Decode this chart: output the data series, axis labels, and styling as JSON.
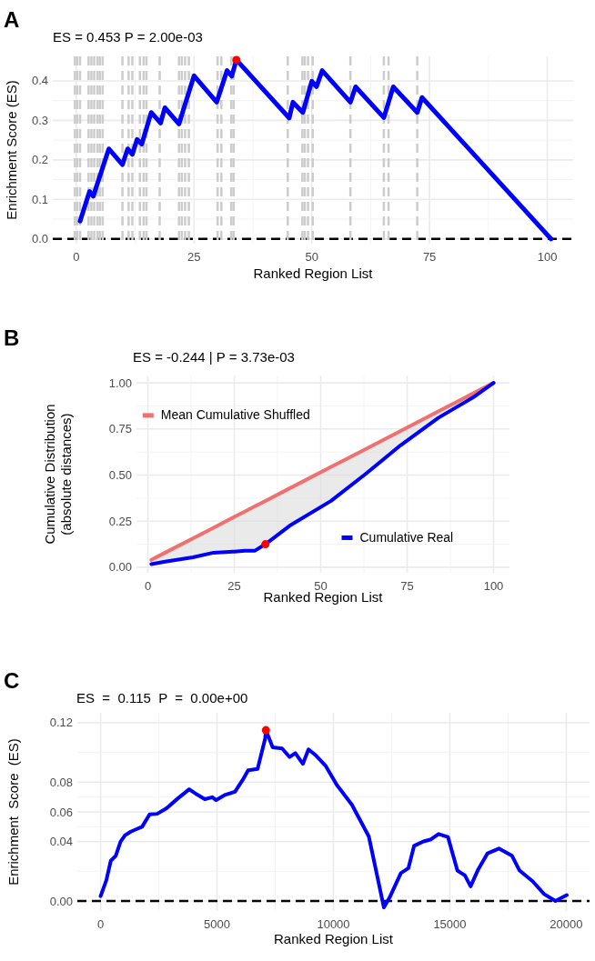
{
  "chart_data": [
    {
      "type": "line",
      "title": "ES = 0.453 P = 2.00e-03",
      "xlabel": "Ranked Region List",
      "ylabel": "Enrichment Score (ES)",
      "annotations": [
        "A"
      ],
      "xlim": [
        -5,
        105.5
      ],
      "ylim": [
        -0.012,
        0.462
      ],
      "xticks": [
        0,
        25,
        50,
        75,
        100
      ],
      "yticks": [
        {
          "value": 0,
          "label": "0.0"
        },
        0.1,
        0.2,
        0.3,
        0.4
      ],
      "grid": true,
      "legend": false,
      "series": [
        {
          "color": "#0000ff",
          "x": [
            0.8,
            2.8,
            3.6,
            6.9,
            9.8,
            10.9,
            11.9,
            12.9,
            13.9,
            15.9,
            17.9,
            18.8,
            21.8,
            25,
            29.8,
            32,
            33,
            34,
            45.2,
            46,
            48.1,
            50,
            51,
            52.2,
            58.2,
            59.3,
            65.3,
            67.3,
            72.4,
            73.4,
            100.8
          ],
          "values": [
            0.045,
            0.12,
            0.108,
            0.228,
            0.188,
            0.228,
            0.214,
            0.252,
            0.24,
            0.32,
            0.293,
            0.332,
            0.291,
            0.413,
            0.346,
            0.426,
            0.412,
            0.453,
            0.306,
            0.346,
            0.32,
            0.399,
            0.385,
            0.426,
            0.346,
            0.385,
            0.307,
            0.385,
            0.32,
            0.358,
            0
          ]
        },
        {
          "type": "scatter",
          "marker": "circle",
          "color": "#ff0000",
          "x": [
            34
          ],
          "values": [
            0.453
          ]
        }
      ],
      "ref_lines": [
        {
          "axis": "y",
          "value": 0,
          "color": "#000000",
          "line_style": "dashed"
        },
        {
          "axis": "x",
          "value": -0.3,
          "color": "#cccccc",
          "line_style": "dashed"
        },
        {
          "axis": "x",
          "value": 0.2,
          "color": "#cccccc",
          "line_style": "dashed"
        },
        {
          "axis": "x",
          "value": 0.8,
          "color": "#cccccc",
          "line_style": "dashed"
        },
        {
          "axis": "x",
          "value": 2.6,
          "color": "#cccccc",
          "line_style": "dashed"
        },
        {
          "axis": "x",
          "value": 3.2,
          "color": "#cccccc",
          "line_style": "dashed"
        },
        {
          "axis": "x",
          "value": 3.8,
          "color": "#cccccc",
          "line_style": "dashed"
        },
        {
          "axis": "x",
          "value": 4.5,
          "color": "#cccccc",
          "line_style": "dashed"
        },
        {
          "axis": "x",
          "value": 5,
          "color": "#cccccc",
          "line_style": "dashed"
        },
        {
          "axis": "x",
          "value": 5.6,
          "color": "#cccccc",
          "line_style": "dashed"
        },
        {
          "axis": "x",
          "value": 9.8,
          "color": "#cccccc",
          "line_style": "dashed"
        },
        {
          "axis": "x",
          "value": 11.1,
          "color": "#cccccc",
          "line_style": "dashed"
        },
        {
          "axis": "x",
          "value": 11.9,
          "color": "#cccccc",
          "line_style": "dashed"
        },
        {
          "axis": "x",
          "value": 13.5,
          "color": "#cccccc",
          "line_style": "dashed"
        },
        {
          "axis": "x",
          "value": 14.3,
          "color": "#cccccc",
          "line_style": "dashed"
        },
        {
          "axis": "x",
          "value": 14.9,
          "color": "#cccccc",
          "line_style": "dashed"
        },
        {
          "axis": "x",
          "value": 17.7,
          "color": "#cccccc",
          "line_style": "dashed"
        },
        {
          "axis": "x",
          "value": 21.8,
          "color": "#cccccc",
          "line_style": "dashed"
        },
        {
          "axis": "x",
          "value": 22.4,
          "color": "#cccccc",
          "line_style": "dashed"
        },
        {
          "axis": "x",
          "value": 23.1,
          "color": "#cccccc",
          "line_style": "dashed"
        },
        {
          "axis": "x",
          "value": 23.9,
          "color": "#cccccc",
          "line_style": "dashed"
        },
        {
          "axis": "x",
          "value": 30,
          "color": "#cccccc",
          "line_style": "dashed"
        },
        {
          "axis": "x",
          "value": 30.8,
          "color": "#cccccc",
          "line_style": "dashed"
        },
        {
          "axis": "x",
          "value": 32.9,
          "color": "#cccccc",
          "line_style": "dashed"
        },
        {
          "axis": "x",
          "value": 33.4,
          "color": "#cccccc",
          "line_style": "dashed"
        },
        {
          "axis": "x",
          "value": 44.9,
          "color": "#cccccc",
          "line_style": "dashed"
        },
        {
          "axis": "x",
          "value": 48,
          "color": "#cccccc",
          "line_style": "dashed"
        },
        {
          "axis": "x",
          "value": 48.5,
          "color": "#cccccc",
          "line_style": "dashed"
        },
        {
          "axis": "x",
          "value": 49.2,
          "color": "#cccccc",
          "line_style": "dashed"
        },
        {
          "axis": "x",
          "value": 50.2,
          "color": "#cccccc",
          "line_style": "dashed"
        },
        {
          "axis": "x",
          "value": 58.2,
          "color": "#cccccc",
          "line_style": "dashed"
        },
        {
          "axis": "x",
          "value": 65.3,
          "color": "#cccccc",
          "line_style": "dashed"
        },
        {
          "axis": "x",
          "value": 66.3,
          "color": "#cccccc",
          "line_style": "dashed"
        },
        {
          "axis": "x",
          "value": 72.4,
          "color": "#cccccc",
          "line_style": "dashed"
        }
      ]
    },
    {
      "type": "line",
      "title": "ES = -0.244 | P = 3.73e-03",
      "xlabel": "Ranked Region List",
      "ylabel": "Cumulative Distribution\n(absolute distances)",
      "annotations": [
        "B"
      ],
      "xlim": [
        -3.3,
        104.6
      ],
      "ylim": [
        -0.03,
        1.04
      ],
      "xticks": [
        0,
        25,
        50,
        75,
        100
      ],
      "yticks": [
        {
          "value": 0,
          "label": "0.00"
        },
        0.25,
        {
          "value": 0.5,
          "label": "0.50"
        },
        0.75,
        {
          "value": 1,
          "label": "1.00"
        }
      ],
      "grid": true,
      "legend": "bottom left",
      "series": [
        {
          "name": "Mean Cumulative Shuffled",
          "color": "#f07070",
          "x": [
            1,
            5,
            13,
            19,
            25,
            28,
            31,
            34,
            41,
            53,
            63,
            73,
            84,
            94,
            100
          ],
          "values": [
            0.04,
            0.079,
            0.156,
            0.214,
            0.273,
            0.302,
            0.331,
            0.36,
            0.428,
            0.544,
            0.641,
            0.738,
            0.845,
            0.942,
            1.0
          ],
          "lower": [
            0.017,
            0.03,
            0.054,
            0.079,
            0.085,
            0.09,
            0.09,
            0.125,
            0.225,
            0.36,
            0.506,
            0.66,
            0.81,
            0.92,
            1.0
          ],
          "upper": [
            0.04,
            0.079,
            0.156,
            0.214,
            0.273,
            0.302,
            0.331,
            0.36,
            0.428,
            0.544,
            0.641,
            0.738,
            0.845,
            0.942,
            1.0
          ]
        },
        {
          "name": "Cumulative Real",
          "color": "#0000ff",
          "x": [
            1,
            5,
            13,
            19,
            25,
            28,
            31,
            34,
            41,
            53,
            63,
            73,
            84,
            94,
            100
          ],
          "values": [
            0.017,
            0.03,
            0.054,
            0.079,
            0.085,
            0.09,
            0.09,
            0.125,
            0.225,
            0.36,
            0.506,
            0.66,
            0.81,
            0.92,
            1.0
          ]
        },
        {
          "type": "scatter",
          "marker": "circle",
          "color": "#ff0000",
          "x": [
            34
          ],
          "values": [
            0.125
          ]
        }
      ]
    },
    {
      "type": "line",
      "title": "ES  =  0.115  P  =  0.00e+00",
      "xlabel": "Ranked Region List",
      "ylabel": "Enrichment  Score  (ES)",
      "annotations": [
        "C"
      ],
      "xlim": [
        -1000,
        21000
      ],
      "ylim": [
        -0.0067,
        0.1267
      ],
      "xticks": [
        0,
        5000,
        10000,
        15000,
        20000
      ],
      "yticks": [
        {
          "value": 0,
          "label": "0.00"
        },
        0.04,
        0.06,
        0.08,
        0.12
      ],
      "grid": true,
      "legend": false,
      "series": [
        {
          "color": "#0000ff",
          "x": [
            0,
            243,
            437,
            648,
            858,
            1052,
            1295,
            1538,
            1781,
            2105,
            2428,
            2833,
            3319,
            3805,
            4150,
            4475,
            4800,
            4960,
            5365,
            5770,
            6094,
            6337,
            6742,
            7066,
            7100,
            7390,
            7795,
            8119,
            8362,
            8686,
            8929,
            9252,
            9657,
            10143,
            10790,
            11519,
            12167,
            12410,
            12895,
            13219,
            13462,
            13867,
            14190,
            14514,
            14919,
            15324,
            15648,
            15891,
            16215,
            16620,
            17106,
            17672,
            17996,
            18563,
            19049,
            19534,
            20020
          ],
          "values": [
            0.0033,
            0.0139,
            0.0271,
            0.0304,
            0.04,
            0.0443,
            0.0467,
            0.0484,
            0.05,
            0.0583,
            0.0587,
            0.0625,
            0.0691,
            0.0752,
            0.0716,
            0.0686,
            0.0699,
            0.0679,
            0.0716,
            0.0735,
            0.0813,
            0.088,
            0.0889,
            0.1093,
            0.115,
            0.1035,
            0.1027,
            0.0969,
            0.0995,
            0.0923,
            0.1021,
            0.0979,
            0.0912,
            0.0782,
            0.0649,
            0.0435,
            -0.0043,
            0.0023,
            0.0188,
            0.0221,
            0.0371,
            0.0401,
            0.0415,
            0.0451,
            0.0431,
            0.0205,
            0.0172,
            0.0099,
            0.0212,
            0.0321,
            0.0353,
            0.0304,
            0.0205,
            0.0132,
            0.0047,
            0,
            0.004
          ]
        },
        {
          "type": "scatter",
          "marker": "circle",
          "color": "#ff0000",
          "x": [
            7100
          ],
          "values": [
            0.115
          ]
        }
      ],
      "ref_lines": [
        {
          "axis": "y",
          "value": 0,
          "color": "#000000",
          "line_style": "dashed"
        }
      ]
    }
  ]
}
